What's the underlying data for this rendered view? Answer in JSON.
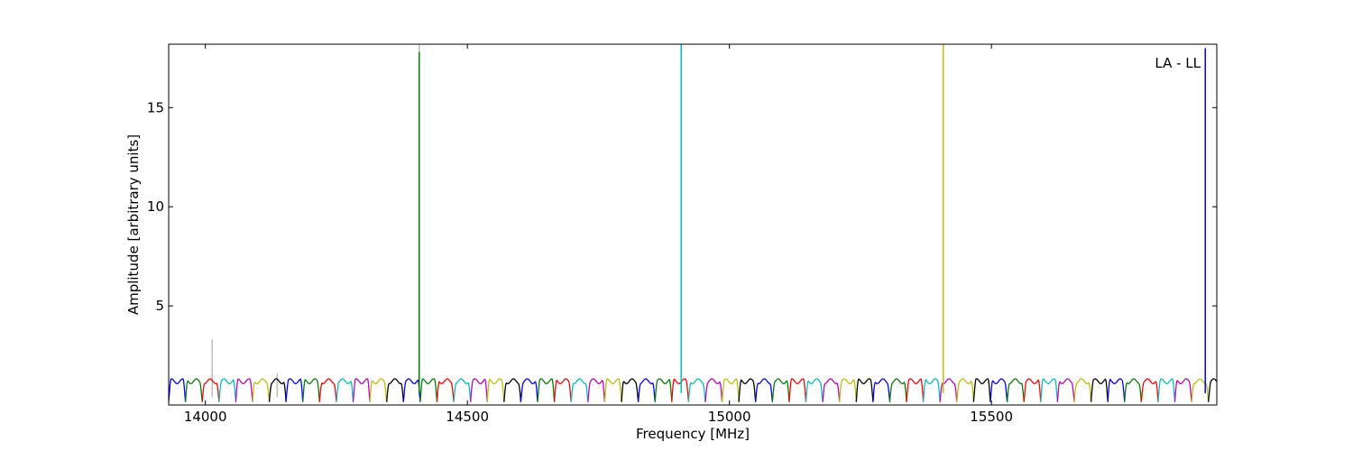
{
  "chart_data": {
    "type": "line",
    "title": "",
    "xlabel": "Frequency [MHz]",
    "ylabel": "Amplitude [arbitrary units]",
    "annotation": "LA - LL",
    "xlim": [
      13930,
      15930
    ],
    "ylim": [
      0,
      18.2
    ],
    "xticks": [
      14000,
      14500,
      15000,
      15500
    ],
    "xtick_labels": [
      "14000",
      "14500",
      "15000",
      "15500"
    ],
    "yticks": [
      5,
      10,
      15
    ],
    "ytick_labels": [
      "5",
      "10",
      "15"
    ],
    "grid": false,
    "legend": "none",
    "channel": {
      "start_mhz": 13930,
      "width_mhz": 32,
      "count": 63,
      "shape": "bandpass",
      "level": 1.2,
      "dip": 0.15,
      "wiggle": 0.12
    },
    "colors": [
      "#0000ff",
      "#008000",
      "#ff0000",
      "#00bfbf",
      "#bf00bf",
      "#bfbf00",
      "#000000"
    ],
    "spikes": [
      {
        "x": 14408,
        "y": 17.8,
        "color": "#008000"
      },
      {
        "x": 14908,
        "y": 18.2,
        "color": "#00bfbf"
      },
      {
        "x": 15408,
        "y": 18.2,
        "color": "#bfbf00"
      },
      {
        "x": 15908,
        "y": 18.0,
        "color": "#0000ff"
      }
    ],
    "rfi_spikes": [
      {
        "x": 14013,
        "y": 3.3,
        "color": "#bbbbbb"
      },
      {
        "x": 14137,
        "y": 1.6,
        "color": "#bbbbbb"
      },
      {
        "x": 14408,
        "y": 18.2,
        "color": "#bbbbbb"
      }
    ]
  }
}
